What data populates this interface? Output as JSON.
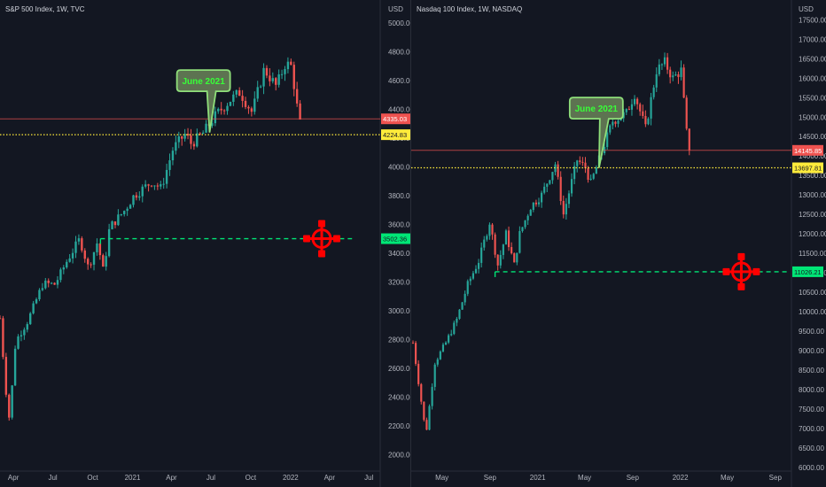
{
  "chart_data": [
    {
      "type": "candlestick",
      "title": "S&P 500 Index, 1W, TVC",
      "currency": "USD",
      "ylim": [
        1900,
        5050
      ],
      "y_ticks": [
        "5000.00",
        "4800.00",
        "4600.00",
        "4400.00",
        "4200.00",
        "4000.00",
        "3800.00",
        "3600.00",
        "3400.00",
        "3200.00",
        "3000.00",
        "2800.00",
        "2600.00",
        "2400.00",
        "2200.00",
        "2000.00"
      ],
      "x_ticks": [
        "Apr",
        "Jul",
        "Oct",
        "2021",
        "Apr",
        "Jul",
        "Oct",
        "2022",
        "Apr",
        "Jul"
      ],
      "x_tick_dates": [
        "2020-04-01",
        "2020-07-01",
        "2020-10-01",
        "2021-01-01",
        "2021-04-01",
        "2021-07-01",
        "2021-10-01",
        "2022-01-01",
        "2022-04-01",
        "2022-07-01"
      ],
      "x_range": [
        "2020-03-01",
        "2022-07-25"
      ],
      "series": [
        {
          "anchors": [
            [
              "2020-03-01",
              2950
            ],
            [
              "2020-03-16",
              2400
            ],
            [
              "2020-03-23",
              2240
            ],
            [
              "2020-04-06",
              2790
            ],
            [
              "2020-05-04",
              2930
            ],
            [
              "2020-06-08",
              3190
            ],
            [
              "2020-07-06",
              3185
            ],
            [
              "2020-08-03",
              3350
            ],
            [
              "2020-09-01",
              3500
            ],
            [
              "2020-09-21",
              3300
            ],
            [
              "2020-10-12",
              3480
            ],
            [
              "2020-10-26",
              3270
            ],
            [
              "2020-11-09",
              3580
            ],
            [
              "2020-12-14",
              3700
            ],
            [
              "2021-01-04",
              3800
            ],
            [
              "2021-02-15",
              3900
            ],
            [
              "2021-03-08",
              3850
            ],
            [
              "2021-04-05",
              4130
            ],
            [
              "2021-05-03",
              4230
            ],
            [
              "2021-05-17",
              4160
            ],
            [
              "2021-06-14",
              4240
            ],
            [
              "2021-07-12",
              4360
            ],
            [
              "2021-08-16",
              4470
            ],
            [
              "2021-09-06",
              4520
            ],
            [
              "2021-10-04",
              4380
            ],
            [
              "2021-11-01",
              4680
            ],
            [
              "2021-11-29",
              4560
            ],
            [
              "2021-12-20",
              4720
            ],
            [
              "2022-01-03",
              4700
            ],
            [
              "2022-01-17",
              4400
            ],
            [
              "2022-01-24",
              4330
            ]
          ]
        }
      ],
      "price_labels": [
        {
          "text": "4335.03",
          "value": 4335.03,
          "color": "#ef5350",
          "text_color": "#ffffff",
          "line": "solid-red"
        },
        {
          "text": "4224.83",
          "value": 4224.83,
          "color": "#ffeb3b",
          "text_color": "#131722",
          "line": "dotted-yellow"
        },
        {
          "text": "3502.36",
          "value": 3502.36,
          "color": "#00e676",
          "text_color": "#131722",
          "line": "dashed-green",
          "from": "2020-10-19",
          "to": "2022-05-23"
        }
      ],
      "annotations": [
        {
          "text": "June 2021",
          "date": "2021-06-14",
          "value": 4600,
          "pointer_date": "2021-06-28",
          "pointer_value": 4240
        }
      ],
      "target_marker": {
        "date": "2022-03-14",
        "value": 3502.36
      }
    },
    {
      "type": "candlestick",
      "title": "Nasdaq 100 Index, 1W, NASDAQ",
      "currency": "USD",
      "ylim": [
        5950,
        17600
      ],
      "y_ticks": [
        "17500.00",
        "17000.00",
        "16500.00",
        "16000.00",
        "15500.00",
        "15000.00",
        "14500.00",
        "14000.00",
        "13500.00",
        "13000.00",
        "12500.00",
        "12000.00",
        "11500.00",
        "11000.00",
        "10500.00",
        "10000.00",
        "9500.00",
        "9000.00",
        "8500.00",
        "8000.00",
        "7500.00",
        "7000.00",
        "6500.00",
        "6000.00"
      ],
      "x_ticks": [
        "May",
        "Sep",
        "2021",
        "May",
        "Sep",
        "2022",
        "May",
        "Sep"
      ],
      "x_tick_dates": [
        "2020-05-01",
        "2020-09-01",
        "2021-01-01",
        "2021-05-01",
        "2021-09-01",
        "2022-01-01",
        "2022-05-01",
        "2022-09-01"
      ],
      "x_range": [
        "2020-02-17",
        "2022-10-10"
      ],
      "series": [
        {
          "anchors": [
            [
              "2020-02-17",
              9200
            ],
            [
              "2020-03-09",
              7700
            ],
            [
              "2020-03-16",
              7200
            ],
            [
              "2020-03-23",
              7000
            ],
            [
              "2020-04-13",
              8700
            ],
            [
              "2020-05-11",
              9200
            ],
            [
              "2020-06-08",
              9800
            ],
            [
              "2020-07-06",
              10700
            ],
            [
              "2020-08-03",
              11300
            ],
            [
              "2020-08-31",
              12300
            ],
            [
              "2020-09-21",
              11200
            ],
            [
              "2020-10-12",
              12000
            ],
            [
              "2020-11-02",
              11200
            ],
            [
              "2020-11-16",
              12000
            ],
            [
              "2020-12-14",
              12700
            ],
            [
              "2021-01-11",
              13000
            ],
            [
              "2021-02-15",
              13800
            ],
            [
              "2021-03-08",
              12500
            ],
            [
              "2021-04-12",
              13900
            ],
            [
              "2021-05-03",
              13700
            ],
            [
              "2021-05-17",
              13300
            ],
            [
              "2021-06-14",
              14100
            ],
            [
              "2021-07-12",
              14900
            ],
            [
              "2021-08-16",
              15100
            ],
            [
              "2021-09-06",
              15600
            ],
            [
              "2021-10-04",
              14700
            ],
            [
              "2021-11-01",
              16200
            ],
            [
              "2021-11-22",
              16400
            ],
            [
              "2021-12-13",
              16000
            ],
            [
              "2022-01-03",
              16200
            ],
            [
              "2022-01-17",
              14600
            ],
            [
              "2022-01-24",
              14146
            ]
          ]
        }
      ],
      "price_labels": [
        {
          "text": "14145.85",
          "value": 14145.85,
          "color": "#ef5350",
          "text_color": "#ffffff",
          "line": "solid-red"
        },
        {
          "text": "13697.81",
          "value": 13697.81,
          "color": "#ffeb3b",
          "text_color": "#131722",
          "line": "dotted-yellow"
        },
        {
          "text": "11026.21",
          "value": 11026.21,
          "color": "#00e676",
          "text_color": "#131722",
          "line": "dashed-green",
          "from": "2020-09-14",
          "to": "2022-10-03"
        }
      ],
      "annotations": [
        {
          "text": "June 2021",
          "date": "2021-05-31",
          "value": 15230,
          "pointer_date": "2021-06-07",
          "pointer_value": 13700
        }
      ],
      "target_marker": {
        "date": "2022-06-06",
        "value": 11026.21
      }
    }
  ]
}
